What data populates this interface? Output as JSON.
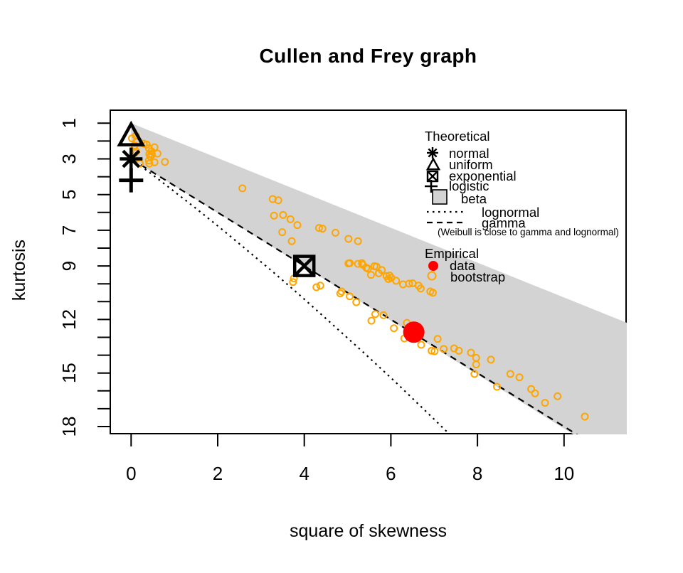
{
  "title": "Cullen and Frey graph",
  "axes": {
    "xlabel": "square of skewness",
    "ylabel": "kurtosis"
  },
  "legend": {
    "theoretical_header": "Theoretical",
    "theoretical_items": [
      {
        "marker": "asterisk-icon",
        "label": "normal"
      },
      {
        "marker": "triangle-icon",
        "label": "uniform"
      },
      {
        "marker": "square-cross-icon",
        "label": "exponential"
      },
      {
        "marker": "plus-icon",
        "label": "logistic"
      },
      {
        "marker": "gray-square-icon",
        "label": "beta"
      },
      {
        "marker": "dotted-line-icon",
        "label": "lognormal"
      },
      {
        "marker": "dashed-line-icon",
        "label": "gamma"
      }
    ],
    "note": "(Weibull is close to gamma and lognormal)",
    "empirical_header": "Empirical",
    "empirical_items": [
      {
        "marker": "red-dot-icon",
        "label": "data"
      },
      {
        "marker": "orange-ring-icon",
        "label": "bootstrap"
      }
    ]
  },
  "colors": {
    "bootstrap": "#FFA500",
    "data": "#FF0000",
    "beta_region": "#D3D3D3",
    "foreground": "#000000"
  },
  "chart_data": {
    "type": "scatter",
    "title": "Cullen and Frey graph",
    "xlabel": "square of skewness",
    "ylabel": "kurtosis",
    "x_axis": {
      "ticks": [
        0,
        2,
        4,
        6,
        8,
        10
      ],
      "range": [
        -0.48,
        11.45
      ]
    },
    "y_axis": {
      "labeled_ticks": [
        1,
        3,
        5,
        7,
        9,
        12,
        15,
        18
      ],
      "minor_tick_step": 1,
      "minor_tick_range": [
        1,
        18
      ],
      "range": [
        0.27,
        18.48
      ],
      "reversed": true
    },
    "theoretical_points": {
      "normal": {
        "x": 0,
        "y": 3
      },
      "uniform": {
        "x": 0,
        "y": 1.8
      },
      "exponential": {
        "x": 4,
        "y": 9
      },
      "logistic": {
        "x": 0,
        "y": 4.2
      }
    },
    "beta_region_polygon": [
      [
        0,
        1
      ],
      [
        11.45,
        12.18
      ],
      [
        11.45,
        18.48
      ],
      [
        10.22,
        18.48
      ],
      [
        0,
        3
      ]
    ],
    "lognormal_curve": [
      [
        0,
        3
      ],
      [
        0.47,
        3.84
      ],
      [
        0.96,
        4.76
      ],
      [
        1.49,
        5.76
      ],
      [
        2.05,
        6.85
      ],
      [
        2.64,
        8.04
      ],
      [
        3.27,
        9.32
      ],
      [
        3.93,
        10.71
      ],
      [
        4.62,
        12.21
      ],
      [
        5.36,
        13.83
      ],
      [
        6.13,
        15.56
      ],
      [
        6.93,
        17.43
      ],
      [
        7.43,
        18.61
      ]
    ],
    "gamma_line": [
      [
        0,
        3
      ],
      [
        10.32,
        18.48
      ]
    ],
    "empirical_point": [
      6.53,
      12.71
    ],
    "bootstrap_points": [
      [
        0.02,
        1.85
      ],
      [
        0.11,
        1.7
      ],
      [
        0.12,
        2.05
      ],
      [
        0.08,
        2.25
      ],
      [
        0.29,
        2.15
      ],
      [
        0.36,
        2.2
      ],
      [
        0.41,
        2.4
      ],
      [
        0.54,
        2.35
      ],
      [
        0.47,
        2.57
      ],
      [
        0.42,
        2.73
      ],
      [
        0.48,
        2.75
      ],
      [
        0.44,
        2.86
      ],
      [
        0.61,
        2.7
      ],
      [
        0.12,
        2.59
      ],
      [
        0.09,
        2.66
      ],
      [
        0.41,
        3.09
      ],
      [
        0.54,
        3.19
      ],
      [
        0.42,
        3.26
      ],
      [
        0.78,
        3.17
      ],
      [
        0.2,
        3.26
      ],
      [
        2.57,
        4.65
      ],
      [
        3.27,
        5.25
      ],
      [
        3.4,
        5.32
      ],
      [
        3.3,
        6.18
      ],
      [
        3.51,
        6.14
      ],
      [
        3.68,
        6.38
      ],
      [
        3.84,
        6.71
      ],
      [
        3.49,
        7.11
      ],
      [
        3.71,
        7.61
      ],
      [
        4.34,
        6.87
      ],
      [
        4.42,
        6.91
      ],
      [
        4.72,
        7.14
      ],
      [
        5.02,
        7.48
      ],
      [
        5.24,
        7.61
      ],
      [
        5.02,
        8.86
      ],
      [
        5.05,
        8.84
      ],
      [
        5.24,
        8.88
      ],
      [
        5.33,
        8.84
      ],
      [
        5.35,
        8.93
      ],
      [
        5.43,
        9.1
      ],
      [
        5.47,
        9.15
      ],
      [
        5.62,
        9.01
      ],
      [
        5.67,
        9.04
      ],
      [
        5.54,
        9.5
      ],
      [
        5.72,
        9.41
      ],
      [
        5.79,
        9.23
      ],
      [
        5.9,
        9.57
      ],
      [
        5.97,
        9.54
      ],
      [
        5.94,
        9.73
      ],
      [
        6.01,
        9.67
      ],
      [
        6.12,
        9.83
      ],
      [
        6.28,
        10.03
      ],
      [
        6.42,
        9.99
      ],
      [
        6.5,
        9.97
      ],
      [
        6.64,
        10.1
      ],
      [
        6.69,
        10.26
      ],
      [
        6.91,
        10.43
      ],
      [
        6.97,
        10.5
      ],
      [
        3.76,
        9.7
      ],
      [
        3.74,
        9.9
      ],
      [
        4.28,
        10.19
      ],
      [
        4.37,
        10.1
      ],
      [
        4.83,
        10.54
      ],
      [
        4.86,
        10.43
      ],
      [
        5.05,
        10.7
      ],
      [
        5.2,
        11.03
      ],
      [
        5.64,
        11.7
      ],
      [
        5.83,
        11.76
      ],
      [
        5.55,
        12.07
      ],
      [
        6.07,
        12.49
      ],
      [
        6.37,
        12.19
      ],
      [
        6.31,
        13.06
      ],
      [
        6.7,
        13.42
      ],
      [
        6.94,
        13.75
      ],
      [
        7.01,
        13.78
      ],
      [
        7.08,
        13.09
      ],
      [
        7.22,
        13.65
      ],
      [
        7.46,
        13.62
      ],
      [
        7.57,
        13.75
      ],
      [
        7.85,
        13.86
      ],
      [
        7.97,
        14.15
      ],
      [
        8.31,
        14.25
      ],
      [
        7.97,
        14.52
      ],
      [
        7.93,
        15.05
      ],
      [
        8.45,
        15.77
      ],
      [
        8.76,
        15.05
      ],
      [
        8.97,
        15.24
      ],
      [
        9.24,
        15.9
      ],
      [
        9.33,
        16.14
      ],
      [
        9.56,
        16.67
      ],
      [
        9.85,
        16.3
      ],
      [
        10.48,
        17.44
      ]
    ]
  }
}
